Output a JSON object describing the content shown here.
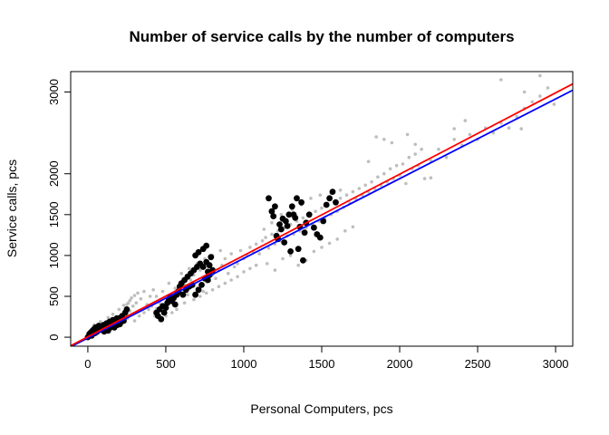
{
  "chart_data": {
    "type": "scatter",
    "title": "Number of service calls by the number of computers",
    "xlabel": "Personal Computers, pcs",
    "ylabel": "Service calls, pcs",
    "xlim": [
      -110,
      3110
    ],
    "ylim": [
      -110,
      3250
    ],
    "x_ticks": [
      0,
      500,
      1000,
      1500,
      2000,
      2500,
      3000
    ],
    "y_ticks": [
      0,
      500,
      1000,
      1500,
      2000,
      3000
    ],
    "grid": false,
    "legend": "none",
    "colors": {
      "population_points": "#bebebe",
      "sample_points": "#000000",
      "fit_red": "#ff0000",
      "fit_blue": "#0000ff"
    },
    "series": [
      {
        "role": "population",
        "marker": "small-dot",
        "points": [
          [
            10,
            20
          ],
          [
            20,
            40
          ],
          [
            35,
            60
          ],
          [
            50,
            80
          ],
          [
            60,
            40
          ],
          [
            75,
            110
          ],
          [
            90,
            70
          ],
          [
            105,
            130
          ],
          [
            120,
            150
          ],
          [
            135,
            100
          ],
          [
            150,
            190
          ],
          [
            165,
            140
          ],
          [
            180,
            220
          ],
          [
            195,
            160
          ],
          [
            210,
            260
          ],
          [
            225,
            180
          ],
          [
            240,
            300
          ],
          [
            255,
            230
          ],
          [
            270,
            320
          ],
          [
            40,
            150
          ],
          [
            80,
            190
          ],
          [
            130,
            240
          ],
          [
            160,
            280
          ],
          [
            200,
            340
          ],
          [
            230,
            390
          ],
          [
            260,
            420
          ],
          [
            280,
            480
          ],
          [
            300,
            510
          ],
          [
            320,
            540
          ],
          [
            340,
            470
          ],
          [
            360,
            560
          ],
          [
            380,
            400
          ],
          [
            400,
            500
          ],
          [
            420,
            580
          ],
          [
            440,
            350
          ],
          [
            460,
            420
          ],
          [
            480,
            300
          ],
          [
            500,
            380
          ],
          [
            520,
            460
          ],
          [
            540,
            520
          ],
          [
            560,
            480
          ],
          [
            580,
            600
          ],
          [
            600,
            550
          ],
          [
            620,
            640
          ],
          [
            640,
            520
          ],
          [
            660,
            700
          ],
          [
            680,
            760
          ],
          [
            700,
            600
          ],
          [
            720,
            820
          ],
          [
            740,
            560
          ],
          [
            760,
            680
          ],
          [
            780,
            900
          ],
          [
            800,
            760
          ],
          [
            820,
            720
          ],
          [
            840,
            820
          ],
          [
            860,
            880
          ],
          [
            880,
            960
          ],
          [
            900,
            780
          ],
          [
            920,
            1020
          ],
          [
            940,
            860
          ],
          [
            960,
            900
          ],
          [
            980,
            1060
          ],
          [
            1000,
            960
          ],
          [
            1020,
            1010
          ],
          [
            1040,
            1100
          ],
          [
            1060,
            1050
          ],
          [
            1080,
            1140
          ],
          [
            1100,
            1020
          ],
          [
            1120,
            1180
          ],
          [
            1140,
            1220
          ],
          [
            1160,
            1090
          ],
          [
            1180,
            1260
          ],
          [
            1200,
            1140
          ],
          [
            1220,
            1300
          ],
          [
            1240,
            1180
          ],
          [
            1260,
            1340
          ],
          [
            1280,
            1240
          ],
          [
            1300,
            1380
          ],
          [
            1320,
            1260
          ],
          [
            1340,
            1420
          ],
          [
            1360,
            1300
          ],
          [
            1380,
            1460
          ],
          [
            1400,
            1340
          ],
          [
            1420,
            1500
          ],
          [
            1440,
            1380
          ],
          [
            1460,
            1540
          ],
          [
            1480,
            1420
          ],
          [
            1500,
            1580
          ],
          [
            1520,
            1460
          ],
          [
            1540,
            1620
          ],
          [
            1560,
            1500
          ],
          [
            1580,
            1660
          ],
          [
            1600,
            1540
          ],
          [
            1620,
            1700
          ],
          [
            1640,
            1590
          ],
          [
            1660,
            1740
          ],
          [
            1680,
            1640
          ],
          [
            1700,
            1780
          ],
          [
            1720,
            1690
          ],
          [
            1740,
            1820
          ],
          [
            1760,
            1740
          ],
          [
            1780,
            1860
          ],
          [
            1800,
            1780
          ],
          [
            1820,
            1900
          ],
          [
            1840,
            1820
          ],
          [
            1860,
            1960
          ],
          [
            1880,
            1860
          ],
          [
            1900,
            2000
          ],
          [
            1920,
            1900
          ],
          [
            1940,
            2060
          ],
          [
            1960,
            1940
          ],
          [
            1980,
            2100
          ],
          [
            2000,
            1980
          ],
          [
            2020,
            2120
          ],
          [
            2040,
            1880
          ],
          [
            2060,
            2200
          ],
          [
            2080,
            2060
          ],
          [
            2100,
            2240
          ],
          [
            2120,
            2100
          ],
          [
            2140,
            2300
          ],
          [
            2160,
            1940
          ],
          [
            2200,
            2160
          ],
          [
            2250,
            2300
          ],
          [
            2300,
            2200
          ],
          [
            2350,
            2420
          ],
          [
            2400,
            2350
          ],
          [
            2450,
            2480
          ],
          [
            2500,
            2420
          ],
          [
            2550,
            2560
          ],
          [
            2600,
            2500
          ],
          [
            2650,
            2620
          ],
          [
            2700,
            2560
          ],
          [
            2750,
            2700
          ],
          [
            2800,
            2800
          ],
          [
            2850,
            2880
          ],
          [
            2900,
            2950
          ],
          [
            2950,
            3050
          ],
          [
            1900,
            2420
          ],
          [
            1950,
            2380
          ],
          [
            2050,
            2480
          ],
          [
            2100,
            2360
          ],
          [
            1800,
            2150
          ],
          [
            2200,
            1950
          ],
          [
            1850,
            2450
          ],
          [
            2650,
            3150
          ],
          [
            2800,
            3000
          ],
          [
            2900,
            3200
          ],
          [
            2420,
            2650
          ],
          [
            2350,
            2550
          ],
          [
            2780,
            2550
          ],
          [
            2990,
            2850
          ],
          [
            1150,
            900
          ],
          [
            1200,
            820
          ],
          [
            1250,
            960
          ],
          [
            1300,
            1000
          ],
          [
            1350,
            880
          ],
          [
            1400,
            940
          ],
          [
            1450,
            1050
          ],
          [
            1500,
            1100
          ],
          [
            1550,
            1150
          ],
          [
            1600,
            1200
          ],
          [
            1650,
            1300
          ],
          [
            1700,
            1350
          ],
          [
            1130,
            1320
          ],
          [
            1180,
            1400
          ],
          [
            1240,
            1500
          ],
          [
            1310,
            1560
          ],
          [
            1370,
            1620
          ],
          [
            1430,
            1700
          ],
          [
            1490,
            1740
          ],
          [
            1560,
            1760
          ],
          [
            1620,
            1800
          ],
          [
            600,
            780
          ],
          [
            650,
            840
          ],
          [
            700,
            900
          ],
          [
            750,
            960
          ],
          [
            800,
            1000
          ],
          [
            850,
            1060
          ],
          [
            560,
            600
          ],
          [
            520,
            660
          ],
          [
            480,
            560
          ],
          [
            440,
            500
          ],
          [
            620,
            420
          ],
          [
            680,
            460
          ],
          [
            720,
            500
          ],
          [
            760,
            540
          ],
          [
            800,
            580
          ],
          [
            840,
            620
          ],
          [
            880,
            660
          ],
          [
            920,
            700
          ],
          [
            960,
            740
          ],
          [
            1000,
            800
          ],
          [
            1040,
            840
          ],
          [
            1080,
            880
          ],
          [
            300,
            200
          ],
          [
            330,
            260
          ],
          [
            360,
            300
          ],
          [
            390,
            340
          ],
          [
            410,
            380
          ],
          [
            430,
            260
          ],
          [
            460,
            220
          ],
          [
            500,
            260
          ],
          [
            540,
            300
          ],
          [
            570,
            340
          ],
          [
            250,
            400
          ],
          [
            270,
            450
          ],
          [
            290,
            380
          ],
          [
            310,
            420
          ]
        ]
      },
      {
        "role": "sample",
        "marker": "large-dot",
        "points": [
          [
            0,
            0
          ],
          [
            10,
            40
          ],
          [
            20,
            60
          ],
          [
            30,
            80
          ],
          [
            40,
            100
          ],
          [
            50,
            120
          ],
          [
            60,
            70
          ],
          [
            70,
            140
          ],
          [
            80,
            90
          ],
          [
            90,
            110
          ],
          [
            100,
            150
          ],
          [
            110,
            130
          ],
          [
            120,
            170
          ],
          [
            130,
            80
          ],
          [
            140,
            190
          ],
          [
            150,
            160
          ],
          [
            160,
            210
          ],
          [
            170,
            120
          ],
          [
            180,
            200
          ],
          [
            190,
            150
          ],
          [
            200,
            230
          ],
          [
            210,
            180
          ],
          [
            220,
            260
          ],
          [
            230,
            200
          ],
          [
            240,
            300
          ],
          [
            250,
            340
          ],
          [
            25,
            20
          ],
          [
            45,
            50
          ],
          [
            65,
            90
          ],
          [
            85,
            130
          ],
          [
            105,
            70
          ],
          [
            125,
            100
          ],
          [
            145,
            120
          ],
          [
            165,
            180
          ],
          [
            185,
            230
          ],
          [
            205,
            160
          ],
          [
            440,
            300
          ],
          [
            450,
            260
          ],
          [
            460,
            340
          ],
          [
            470,
            220
          ],
          [
            480,
            380
          ],
          [
            490,
            300
          ],
          [
            500,
            360
          ],
          [
            510,
            420
          ],
          [
            520,
            460
          ],
          [
            530,
            500
          ],
          [
            540,
            440
          ],
          [
            550,
            480
          ],
          [
            560,
            400
          ],
          [
            570,
            520
          ],
          [
            580,
            560
          ],
          [
            590,
            620
          ],
          [
            600,
            660
          ],
          [
            610,
            520
          ],
          [
            620,
            700
          ],
          [
            630,
            580
          ],
          [
            640,
            740
          ],
          [
            650,
            620
          ],
          [
            660,
            780
          ],
          [
            670,
            640
          ],
          [
            680,
            820
          ],
          [
            690,
            520
          ],
          [
            700,
            860
          ],
          [
            710,
            580
          ],
          [
            720,
            900
          ],
          [
            730,
            640
          ],
          [
            740,
            860
          ],
          [
            750,
            720
          ],
          [
            760,
            920
          ],
          [
            770,
            800
          ],
          [
            780,
            760
          ],
          [
            790,
            980
          ],
          [
            800,
            820
          ],
          [
            690,
            1000
          ],
          [
            710,
            1040
          ],
          [
            740,
            1080
          ],
          [
            760,
            1120
          ],
          [
            780,
            880
          ],
          [
            770,
            700
          ],
          [
            1160,
            1700
          ],
          [
            1180,
            1540
          ],
          [
            1190,
            1480
          ],
          [
            1200,
            1600
          ],
          [
            1210,
            1240
          ],
          [
            1220,
            1200
          ],
          [
            1230,
            1380
          ],
          [
            1240,
            1320
          ],
          [
            1250,
            1450
          ],
          [
            1260,
            1160
          ],
          [
            1270,
            1420
          ],
          [
            1280,
            1360
          ],
          [
            1290,
            1500
          ],
          [
            1300,
            1050
          ],
          [
            1310,
            1600
          ],
          [
            1320,
            1500
          ],
          [
            1330,
            1460
          ],
          [
            1340,
            1700
          ],
          [
            1350,
            1080
          ],
          [
            1360,
            1350
          ],
          [
            1370,
            1650
          ],
          [
            1380,
            940
          ],
          [
            1390,
            1280
          ],
          [
            1400,
            1400
          ],
          [
            1420,
            1500
          ],
          [
            1450,
            1340
          ],
          [
            1470,
            1260
          ],
          [
            1490,
            1220
          ],
          [
            1510,
            1420
          ],
          [
            1530,
            1620
          ],
          [
            1550,
            1700
          ],
          [
            1570,
            1780
          ],
          [
            1590,
            1650
          ]
        ]
      }
    ],
    "fit_lines": [
      {
        "color": "red",
        "slope": 0.995,
        "intercept": 5
      },
      {
        "color": "blue",
        "slope": 0.975,
        "intercept": -10
      }
    ]
  }
}
